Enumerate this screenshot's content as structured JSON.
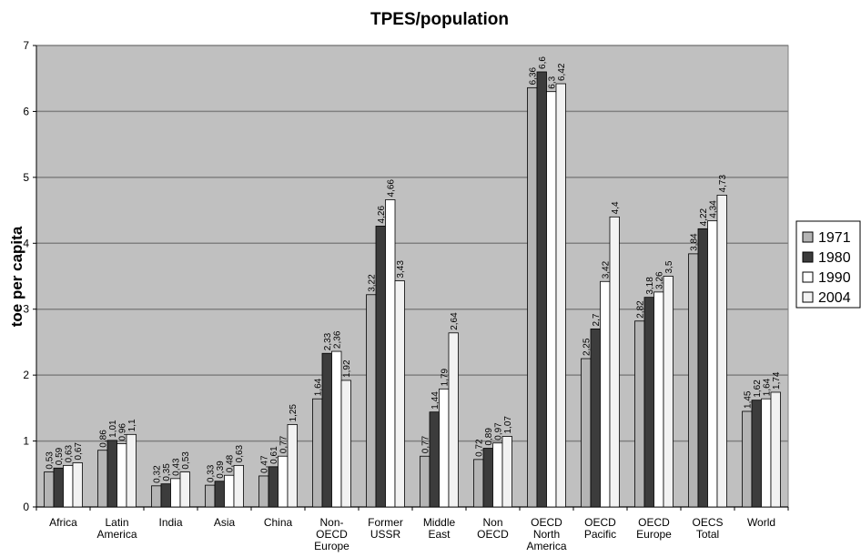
{
  "chart_data": {
    "type": "bar",
    "title": "TPES/population",
    "y_label": "toe per capita",
    "categories": [
      "Africa",
      "Latin America",
      "India",
      "Asia",
      "China",
      "Non-OECD Europe",
      "Former USSR",
      "Middle East",
      "Non OECD",
      "OECD North America",
      "OECD Pacific",
      "OECD Europe",
      "OECS Total",
      "World"
    ],
    "series": [
      {
        "name": "1971",
        "color": "#b4b4b4",
        "values": [
          0.53,
          0.86,
          0.32,
          0.33,
          0.47,
          1.64,
          3.22,
          0.77,
          0.72,
          6.36,
          2.25,
          2.82,
          3.84,
          1.45
        ],
        "value_labels": [
          "0,53",
          "0,86",
          "0,32",
          "0,33",
          "0,47",
          "1,64",
          "3,22",
          "0,77",
          "0,72",
          "6,36",
          "2,25",
          "2,82",
          "3,84",
          "1,45"
        ]
      },
      {
        "name": "1980",
        "color": "#3c3c3c",
        "values": [
          0.59,
          1.01,
          0.35,
          0.39,
          0.61,
          2.33,
          4.26,
          1.44,
          0.89,
          6.6,
          2.7,
          3.18,
          4.22,
          1.62
        ],
        "value_labels": [
          "0,59",
          "1,01",
          "0,35",
          "0,39",
          "0,61",
          "2,33",
          "4,26",
          "1,44",
          "0,89",
          "6,6",
          "2,7",
          "3,18",
          "4,22",
          "1,62"
        ]
      },
      {
        "name": "1990",
        "color": "#ffffff",
        "values": [
          0.63,
          0.96,
          0.43,
          0.48,
          0.77,
          2.36,
          4.66,
          1.79,
          0.97,
          6.3,
          3.42,
          3.26,
          4.34,
          1.64
        ],
        "value_labels": [
          "0,63",
          "0,96",
          "0,43",
          "0,48",
          "0,77",
          "2,36",
          "4,66",
          "1,79",
          "0,97",
          "6,3",
          "3,42",
          "3,26",
          "4,34",
          "1,64"
        ]
      },
      {
        "name": "2004",
        "color": "#f2f2f2",
        "values": [
          0.67,
          1.1,
          0.53,
          0.63,
          1.25,
          1.92,
          3.43,
          2.64,
          1.07,
          6.42,
          4.4,
          3.5,
          4.73,
          1.74
        ],
        "value_labels": [
          "0,67",
          "1,1",
          "0,53",
          "0,63",
          "1,25",
          "1,92",
          "3,43",
          "2,64",
          "1,07",
          "6,42",
          "4,4",
          "3,5",
          "4,73",
          "1,74"
        ]
      }
    ],
    "ylim": [
      0,
      7
    ],
    "yticks": [
      0,
      1,
      2,
      3,
      4,
      5,
      6,
      7
    ],
    "grid": true,
    "legend": "right"
  }
}
